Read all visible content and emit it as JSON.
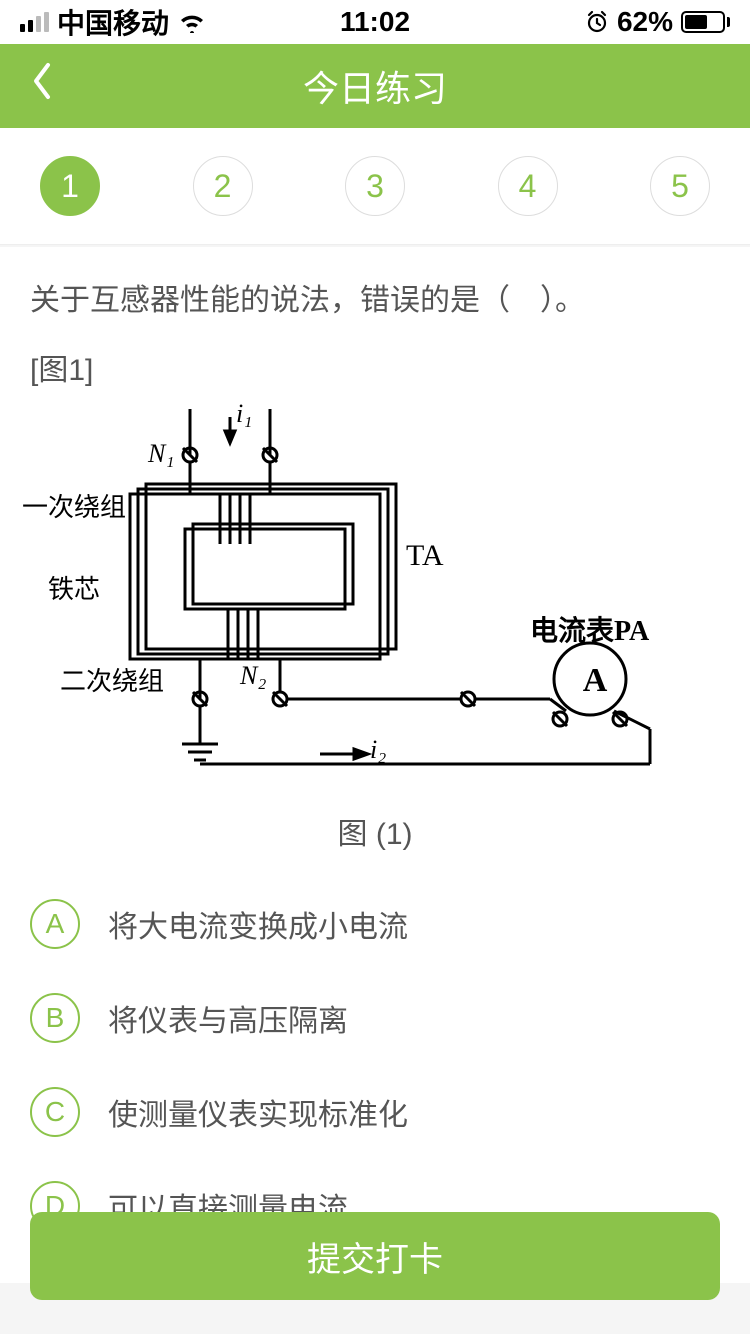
{
  "status": {
    "carrier": "中国移动",
    "time": "11:02",
    "battery_pct": "62%",
    "battery_fill_pct": 62,
    "signal_bars": [
      true,
      true,
      false,
      false
    ]
  },
  "nav": {
    "title": "今日练习"
  },
  "tabs": {
    "items": [
      {
        "label": "1"
      },
      {
        "label": "2"
      },
      {
        "label": "3"
      },
      {
        "label": "4"
      },
      {
        "label": "5"
      }
    ],
    "active_index": 0
  },
  "question": {
    "text": "关于互感器性能的说法，错误的是（　）。",
    "figure_ref": "[图1]",
    "figure_caption": "图 (1)",
    "diagram": {
      "type": "engineering-schematic",
      "labels": {
        "i1": "i₁",
        "N1": "N₁",
        "primary": "一次绕组",
        "core": "铁芯",
        "secondary": "二次绕组",
        "N2": "N₂",
        "TA": "TA",
        "ammeter_label": "电流表PA",
        "ammeter_text": "A",
        "i2": "i₂"
      },
      "stroke_color": "#000000",
      "background": "#ffffff"
    }
  },
  "options": [
    {
      "letter": "A",
      "text": "将大电流变换成小电流"
    },
    {
      "letter": "B",
      "text": "将仪表与高压隔离"
    },
    {
      "letter": "C",
      "text": "使测量仪表实现标准化"
    },
    {
      "letter": "D",
      "text": "可以直接测量电流"
    }
  ],
  "submit": {
    "label": "提交打卡"
  },
  "colors": {
    "accent": "#8bc34a",
    "text": "#555555",
    "bg": "#f5f5f5"
  }
}
